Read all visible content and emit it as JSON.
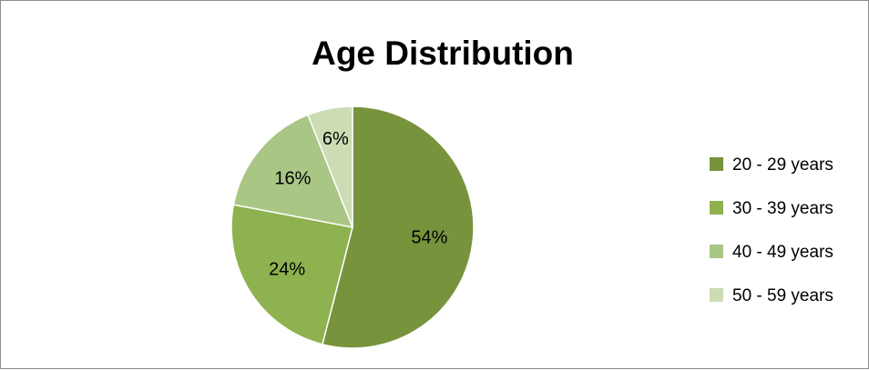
{
  "chart_data": {
    "type": "pie",
    "title": "Age Distribution",
    "categories": [
      "20 - 29 years",
      "30 - 39 years",
      "40 - 49 years",
      "50 - 59 years"
    ],
    "values": [
      54,
      24,
      16,
      6
    ],
    "labels": [
      "54%",
      "24%",
      "16%",
      "6%"
    ],
    "colors": [
      "#77933c",
      "#8fb250",
      "#a9c685",
      "#ccdcb4"
    ],
    "legend_position": "right"
  }
}
